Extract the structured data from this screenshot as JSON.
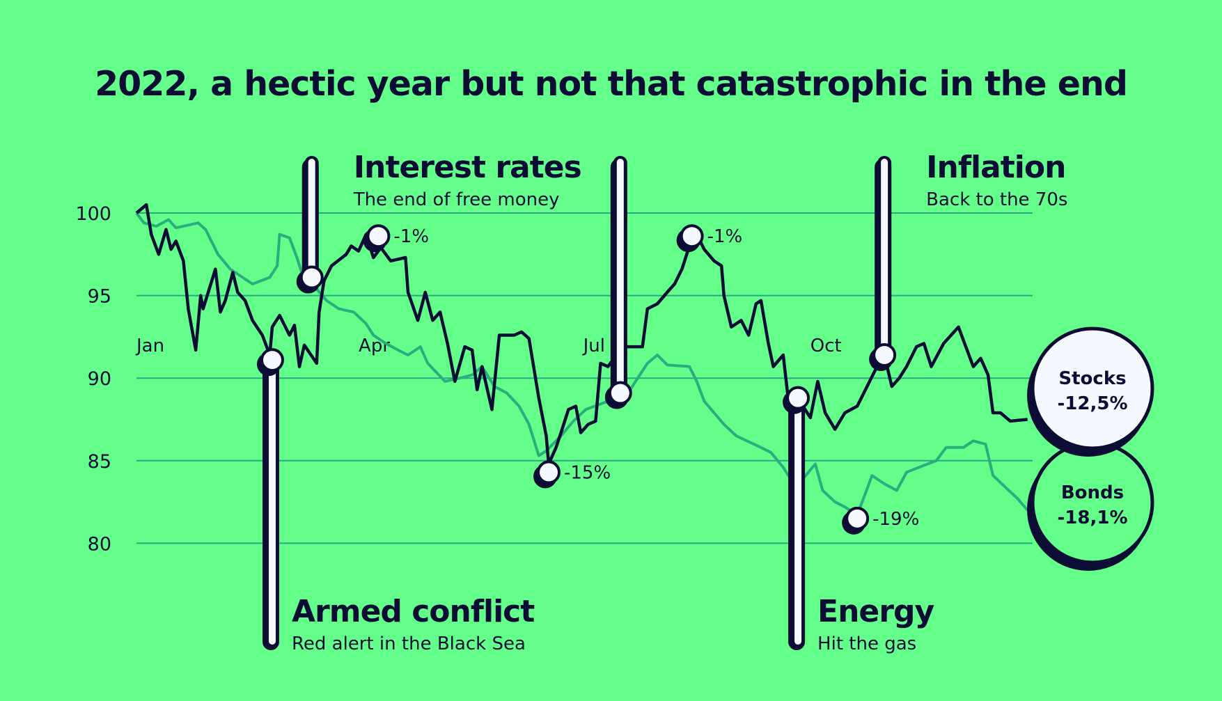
{
  "title": "2022, a hectic year but not that catastrophic in the end",
  "colors": {
    "background": "#64ff8b",
    "stocks": "#0b0d35",
    "bonds": "#2aae7e",
    "grid": "#2aa87f",
    "marker": "#f5f8ff"
  },
  "chart_data": {
    "type": "line",
    "title": "2022, a hectic year but not that catastrophic in the end",
    "xlabel": "",
    "ylabel": "",
    "x_ticks": [
      {
        "date": "2022-01-01",
        "label": "Jan"
      },
      {
        "date": "2022-04-01",
        "label": "Apr"
      },
      {
        "date": "2022-07-01",
        "label": "Jul"
      },
      {
        "date": "2022-10-01",
        "label": "Oct"
      }
    ],
    "y_ticks": [
      100,
      95,
      90,
      85,
      80
    ],
    "ylim": [
      80,
      100
    ],
    "grid": true,
    "series": [
      {
        "name": "Stocks",
        "end_label": "-12,5%",
        "points": [
          [
            "2022-01-01",
            100.0
          ],
          [
            "2022-01-05",
            100.5
          ],
          [
            "2022-01-07",
            98.7
          ],
          [
            "2022-01-10",
            97.5
          ],
          [
            "2022-01-13",
            99.0
          ],
          [
            "2022-01-15",
            97.8
          ],
          [
            "2022-01-17",
            98.3
          ],
          [
            "2022-01-20",
            97.1
          ],
          [
            "2022-01-22",
            94.2
          ],
          [
            "2022-01-25",
            91.7
          ],
          [
            "2022-01-27",
            95.0
          ],
          [
            "2022-01-28",
            94.2
          ],
          [
            "2022-02-02",
            96.6
          ],
          [
            "2022-02-04",
            94.0
          ],
          [
            "2022-02-06",
            94.7
          ],
          [
            "2022-02-09",
            96.4
          ],
          [
            "2022-02-11",
            95.2
          ],
          [
            "2022-02-14",
            94.7
          ],
          [
            "2022-02-17",
            93.5
          ],
          [
            "2022-02-21",
            92.6
          ],
          [
            "2022-02-24",
            91.4
          ],
          [
            "2022-02-25",
            93.1
          ],
          [
            "2022-02-28",
            93.8
          ],
          [
            "2022-03-04",
            92.6
          ],
          [
            "2022-03-06",
            93.2
          ],
          [
            "2022-03-08",
            90.7
          ],
          [
            "2022-03-10",
            92.0
          ],
          [
            "2022-03-15",
            90.9
          ],
          [
            "2022-03-16",
            94.0
          ],
          [
            "2022-03-18",
            95.9
          ],
          [
            "2022-03-21",
            96.8
          ],
          [
            "2022-03-27",
            97.5
          ],
          [
            "2022-03-29",
            98.0
          ],
          [
            "2022-04-01",
            97.7
          ],
          [
            "2022-04-04",
            98.7
          ],
          [
            "2022-04-07",
            97.3
          ],
          [
            "2022-04-10",
            97.9
          ],
          [
            "2022-04-14",
            97.1
          ],
          [
            "2022-04-20",
            97.3
          ],
          [
            "2022-04-21",
            95.2
          ],
          [
            "2022-04-25",
            93.5
          ],
          [
            "2022-04-28",
            95.2
          ],
          [
            "2022-05-01",
            93.5
          ],
          [
            "2022-05-04",
            94.0
          ],
          [
            "2022-05-07",
            92.1
          ],
          [
            "2022-05-10",
            89.8
          ],
          [
            "2022-05-14",
            91.9
          ],
          [
            "2022-05-17",
            91.7
          ],
          [
            "2022-05-19",
            89.3
          ],
          [
            "2022-05-21",
            90.7
          ],
          [
            "2022-05-25",
            88.1
          ],
          [
            "2022-05-28",
            92.6
          ],
          [
            "2022-06-03",
            92.6
          ],
          [
            "2022-06-06",
            92.8
          ],
          [
            "2022-06-09",
            92.4
          ],
          [
            "2022-06-13",
            88.8
          ],
          [
            "2022-06-16",
            86.5
          ],
          [
            "2022-06-17",
            84.8
          ],
          [
            "2022-06-20",
            85.8
          ],
          [
            "2022-06-22",
            86.7
          ],
          [
            "2022-06-25",
            88.1
          ],
          [
            "2022-06-28",
            88.3
          ],
          [
            "2022-06-30",
            86.7
          ],
          [
            "2022-07-03",
            87.2
          ],
          [
            "2022-07-06",
            87.4
          ],
          [
            "2022-07-08",
            90.9
          ],
          [
            "2022-07-11",
            90.7
          ],
          [
            "2022-07-17",
            91.9
          ],
          [
            "2022-07-25",
            91.9
          ],
          [
            "2022-07-27",
            94.2
          ],
          [
            "2022-07-31",
            94.5
          ],
          [
            "2022-08-04",
            95.2
          ],
          [
            "2022-08-07",
            95.7
          ],
          [
            "2022-08-10",
            96.6
          ],
          [
            "2022-08-13",
            98.0
          ],
          [
            "2022-08-16",
            98.7
          ],
          [
            "2022-08-19",
            97.8
          ],
          [
            "2022-08-23",
            97.1
          ],
          [
            "2022-08-26",
            96.8
          ],
          [
            "2022-08-27",
            95.0
          ],
          [
            "2022-08-30",
            93.1
          ],
          [
            "2022-09-03",
            93.5
          ],
          [
            "2022-09-06",
            92.6
          ],
          [
            "2022-09-09",
            94.5
          ],
          [
            "2022-09-11",
            94.7
          ],
          [
            "2022-09-14",
            92.1
          ],
          [
            "2022-09-16",
            90.7
          ],
          [
            "2022-09-20",
            91.4
          ],
          [
            "2022-09-22",
            88.8
          ],
          [
            "2022-09-25",
            87.9
          ],
          [
            "2022-09-28",
            88.3
          ],
          [
            "2022-10-01",
            87.6
          ],
          [
            "2022-10-04",
            89.8
          ],
          [
            "2022-10-07",
            87.9
          ],
          [
            "2022-10-11",
            86.9
          ],
          [
            "2022-10-15",
            87.9
          ],
          [
            "2022-10-20",
            88.3
          ],
          [
            "2022-10-24",
            89.5
          ],
          [
            "2022-10-28",
            90.7
          ],
          [
            "2022-10-31",
            91.4
          ],
          [
            "2022-11-03",
            89.5
          ],
          [
            "2022-11-06",
            90.0
          ],
          [
            "2022-11-09",
            90.7
          ],
          [
            "2022-11-13",
            91.9
          ],
          [
            "2022-11-16",
            92.1
          ],
          [
            "2022-11-19",
            90.7
          ],
          [
            "2022-11-24",
            92.1
          ],
          [
            "2022-11-30",
            93.1
          ],
          [
            "2022-12-03",
            91.9
          ],
          [
            "2022-12-06",
            90.7
          ],
          [
            "2022-12-09",
            91.2
          ],
          [
            "2022-12-12",
            90.2
          ],
          [
            "2022-12-14",
            87.9
          ],
          [
            "2022-12-17",
            87.9
          ],
          [
            "2022-12-21",
            87.4
          ],
          [
            "2022-12-28",
            87.5
          ]
        ]
      },
      {
        "name": "Bonds",
        "end_label": "-18,1%",
        "points": [
          [
            "2022-01-01",
            100.0
          ],
          [
            "2022-01-04",
            99.4
          ],
          [
            "2022-01-09",
            99.2
          ],
          [
            "2022-01-14",
            99.6
          ],
          [
            "2022-01-17",
            99.1
          ],
          [
            "2022-01-26",
            99.4
          ],
          [
            "2022-01-29",
            99.0
          ],
          [
            "2022-02-03",
            97.5
          ],
          [
            "2022-02-08",
            96.6
          ],
          [
            "2022-02-13",
            96.1
          ],
          [
            "2022-02-17",
            95.7
          ],
          [
            "2022-02-24",
            96.1
          ],
          [
            "2022-02-27",
            96.8
          ],
          [
            "2022-02-28",
            98.7
          ],
          [
            "2022-03-04",
            98.5
          ],
          [
            "2022-03-07",
            97.3
          ],
          [
            "2022-03-10",
            95.9
          ],
          [
            "2022-03-15",
            95.4
          ],
          [
            "2022-03-19",
            94.7
          ],
          [
            "2022-03-24",
            94.2
          ],
          [
            "2022-03-30",
            94.0
          ],
          [
            "2022-04-04",
            93.3
          ],
          [
            "2022-04-07",
            92.6
          ],
          [
            "2022-04-12",
            92.1
          ],
          [
            "2022-04-17",
            91.7
          ],
          [
            "2022-04-21",
            91.4
          ],
          [
            "2022-04-26",
            91.9
          ],
          [
            "2022-04-29",
            90.9
          ],
          [
            "2022-05-06",
            89.8
          ],
          [
            "2022-05-12",
            90.0
          ],
          [
            "2022-05-17",
            90.2
          ],
          [
            "2022-05-21",
            90.7
          ],
          [
            "2022-05-26",
            89.5
          ],
          [
            "2022-05-31",
            89.1
          ],
          [
            "2022-06-05",
            88.3
          ],
          [
            "2022-06-09",
            87.2
          ],
          [
            "2022-06-13",
            85.3
          ],
          [
            "2022-06-16",
            85.6
          ],
          [
            "2022-06-22",
            86.5
          ],
          [
            "2022-06-27",
            87.4
          ],
          [
            "2022-07-02",
            88.1
          ],
          [
            "2022-07-11",
            88.6
          ],
          [
            "2022-07-20",
            89.3
          ],
          [
            "2022-07-27",
            90.9
          ],
          [
            "2022-07-31",
            91.4
          ],
          [
            "2022-08-04",
            90.8
          ],
          [
            "2022-08-13",
            90.7
          ],
          [
            "2022-08-16",
            89.8
          ],
          [
            "2022-08-19",
            88.6
          ],
          [
            "2022-08-27",
            87.2
          ],
          [
            "2022-09-01",
            86.5
          ],
          [
            "2022-09-11",
            85.8
          ],
          [
            "2022-09-15",
            85.5
          ],
          [
            "2022-09-20",
            84.6
          ],
          [
            "2022-09-23",
            83.9
          ],
          [
            "2022-09-28",
            83.9
          ],
          [
            "2022-10-03",
            84.8
          ],
          [
            "2022-10-06",
            83.2
          ],
          [
            "2022-10-11",
            82.5
          ],
          [
            "2022-10-15",
            82.2
          ],
          [
            "2022-10-20",
            81.7
          ],
          [
            "2022-10-23",
            82.9
          ],
          [
            "2022-10-26",
            84.1
          ],
          [
            "2022-10-31",
            83.6
          ],
          [
            "2022-11-05",
            83.2
          ],
          [
            "2022-11-09",
            84.3
          ],
          [
            "2022-11-14",
            84.6
          ],
          [
            "2022-11-21",
            85.0
          ],
          [
            "2022-11-25",
            85.8
          ],
          [
            "2022-12-02",
            85.8
          ],
          [
            "2022-12-06",
            86.2
          ],
          [
            "2022-12-11",
            86.0
          ],
          [
            "2022-12-14",
            84.1
          ],
          [
            "2022-12-19",
            83.4
          ],
          [
            "2022-12-24",
            82.7
          ],
          [
            "2022-12-28",
            82.0
          ]
        ]
      }
    ],
    "point_labels": [
      {
        "date": "2022-04-09",
        "value": 98.6,
        "label": "-1%"
      },
      {
        "date": "2022-06-17",
        "value": 84.3,
        "label": "-15%"
      },
      {
        "date": "2022-08-14",
        "value": 98.6,
        "label": "-1%"
      },
      {
        "date": "2022-10-20",
        "value": 81.5,
        "label": "-19%"
      }
    ],
    "events": [
      {
        "date": "2022-02-25",
        "value": 91.1,
        "direction": "down",
        "title": "Armed conflict",
        "subtitle": "Red alert in the Black Sea"
      },
      {
        "date": "2022-03-13",
        "value": 96.1,
        "direction": "up",
        "title": "Interest rates",
        "subtitle": "The end of free money"
      },
      {
        "date": "2022-07-16",
        "value": 89.1,
        "direction": "up",
        "title": "",
        "subtitle": ""
      },
      {
        "date": "2022-09-26",
        "value": 88.8,
        "direction": "down",
        "title": "Energy",
        "subtitle": "Hit the gas"
      },
      {
        "date": "2022-10-31",
        "value": 91.4,
        "direction": "up",
        "title": "Inflation",
        "subtitle": "Back to the 70s"
      }
    ]
  }
}
